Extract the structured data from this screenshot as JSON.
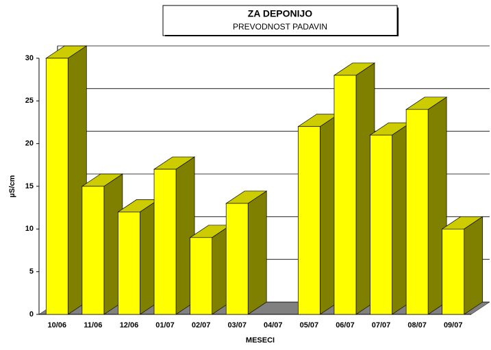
{
  "chart_data": {
    "type": "bar3d",
    "title": "ZA DEPONIJO",
    "subtitle": "PREVODNOST PADAVIN",
    "x_label": "MESECI",
    "y_label": "µS/cm",
    "categories": [
      "10/06",
      "11/06",
      "12/06",
      "01/07",
      "02/07",
      "03/07",
      "04/07",
      "05/07",
      "06/07",
      "07/07",
      "08/07",
      "09/07"
    ],
    "values": [
      30,
      15,
      12,
      17,
      9,
      13,
      null,
      22,
      28,
      21,
      24,
      10
    ],
    "color": "#ffff00",
    "ylim": [
      0,
      30
    ],
    "yticks": [
      0,
      5,
      10,
      15,
      20,
      25,
      30
    ],
    "grid": true
  }
}
